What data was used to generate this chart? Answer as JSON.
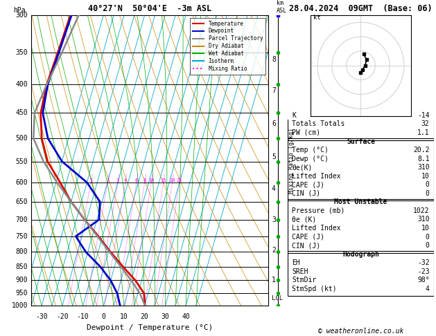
{
  "title_left": "40°27'N  50°04'E  -3m ASL",
  "title_right": "28.04.2024  09GMT  (Base: 06)",
  "xlabel": "Dewpoint / Temperature (°C)",
  "ylabel_left": "hPa",
  "pressure_levels": [
    300,
    350,
    400,
    450,
    500,
    550,
    600,
    650,
    700,
    750,
    800,
    850,
    900,
    950,
    1000
  ],
  "pressure_ticks": [
    300,
    350,
    400,
    450,
    500,
    550,
    600,
    650,
    700,
    750,
    800,
    850,
    900,
    950,
    1000
  ],
  "temp_xlim": [
    -35,
    40
  ],
  "temp_xticks": [
    -30,
    -20,
    -10,
    0,
    10,
    20,
    30,
    40
  ],
  "background_color": "#ffffff",
  "temperature_color": "#dd0000",
  "dewpoint_color": "#0000cc",
  "parcel_color": "#888888",
  "dry_adiabat_color": "#cc8800",
  "wet_adiabat_color": "#00aa00",
  "isotherm_color": "#00aacc",
  "mixing_ratio_color": "#ff00ff",
  "temp_profile_T": [
    20.2,
    18.0,
    12.0,
    4.0,
    -4.0,
    -12.0,
    -21.0,
    -30.0,
    -38.0,
    -47.0,
    -53.0,
    -57.0,
    -58.0,
    -57.0,
    -56.0
  ],
  "temp_profile_P": [
    1000,
    950,
    900,
    850,
    800,
    750,
    700,
    650,
    600,
    550,
    500,
    450,
    400,
    350,
    300
  ],
  "dewp_profile_T": [
    8.1,
    5.0,
    0.0,
    -7.0,
    -16.0,
    -23.0,
    -14.0,
    -16.0,
    -25.0,
    -40.0,
    -50.0,
    -56.0,
    -57.5,
    -56.5,
    -55.5
  ],
  "dewp_profile_P": [
    1000,
    950,
    900,
    850,
    800,
    750,
    700,
    650,
    600,
    550,
    500,
    450,
    400,
    350,
    300
  ],
  "parcel_profile_T": [
    20.2,
    16.0,
    10.0,
    3.0,
    -4.5,
    -12.5,
    -21.0,
    -30.0,
    -39.5,
    -49.0,
    -57.0,
    -60.0,
    -58.0,
    -55.0,
    -52.0
  ],
  "parcel_profile_P": [
    1000,
    950,
    900,
    850,
    800,
    750,
    700,
    650,
    600,
    550,
    500,
    450,
    400,
    350,
    300
  ],
  "mixing_ratios": [
    1,
    2,
    3,
    4,
    6,
    8,
    10,
    15,
    20,
    25
  ],
  "km_ticks": [
    1,
    2,
    3,
    4,
    5,
    6,
    7,
    8
  ],
  "km_pressures": [
    900,
    795,
    700,
    615,
    540,
    470,
    410,
    360
  ],
  "lcl_pressure": 970,
  "pmin": 300,
  "pmax": 1000,
  "skew_factor": 40,
  "table_rows": [
    [
      "K",
      "-14"
    ],
    [
      "Totals Totals",
      "32"
    ],
    [
      "PW (cm)",
      "1.1"
    ],
    [
      "__box1__",
      ""
    ],
    [
      "Surface",
      ""
    ],
    [
      "Temp (°C)",
      "20.2"
    ],
    [
      "Dewp (°C)",
      "8.1"
    ],
    [
      "θe(K)",
      "310"
    ],
    [
      "Lifted Index",
      "10"
    ],
    [
      "CAPE (J)",
      "0"
    ],
    [
      "CIN (J)",
      "0"
    ],
    [
      "__box2__",
      ""
    ],
    [
      "Most Unstable",
      ""
    ],
    [
      "Pressure (mb)",
      "1022"
    ],
    [
      "θe (K)",
      "310"
    ],
    [
      "Lifted Index",
      "10"
    ],
    [
      "CAPE (J)",
      "0"
    ],
    [
      "CIN (J)",
      "0"
    ],
    [
      "__box3__",
      ""
    ],
    [
      "Hodograph",
      ""
    ],
    [
      "EH",
      "-32"
    ],
    [
      "SREH",
      "-23"
    ],
    [
      "StmDir",
      "98°"
    ],
    [
      "StmSpd (kt)",
      "4"
    ]
  ],
  "hodo_pts_u": [
    2,
    4,
    3,
    1,
    0
  ],
  "hodo_pts_v": [
    8,
    4,
    0,
    -3,
    -5
  ],
  "wind_profile_p": [
    1000,
    950,
    900,
    850,
    800,
    750,
    700,
    650,
    600,
    550,
    500,
    450,
    400,
    350,
    300
  ],
  "wind_profile_color": "#00aa00",
  "footer": "© weatheronline.co.uk",
  "legend_items": [
    [
      "Temperature",
      "#dd0000",
      "solid"
    ],
    [
      "Dewpoint",
      "#0000cc",
      "solid"
    ],
    [
      "Parcel Trajectory",
      "#888888",
      "solid"
    ],
    [
      "Dry Adiabat",
      "#cc8800",
      "solid"
    ],
    [
      "Wet Adiabat",
      "#00aa00",
      "solid"
    ],
    [
      "Isotherm",
      "#00aacc",
      "solid"
    ],
    [
      "Mixing Ratio",
      "#ff00ff",
      "dotted"
    ]
  ]
}
